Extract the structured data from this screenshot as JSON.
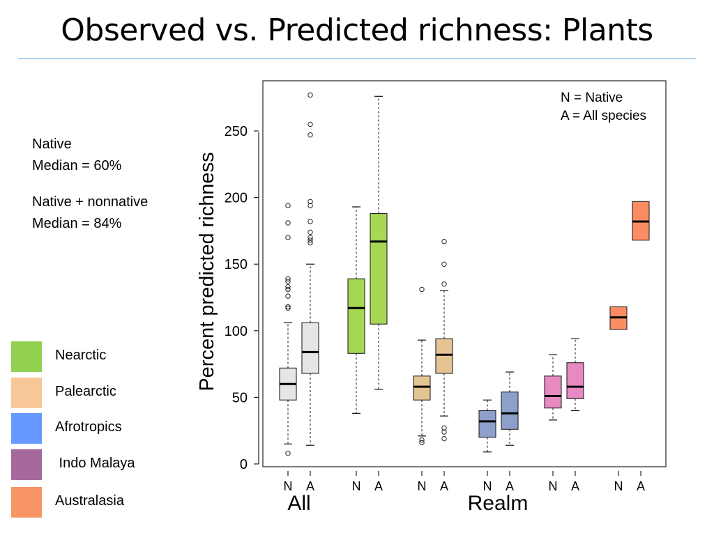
{
  "slide": {
    "title": "Observed vs. Predicted richness: Plants"
  },
  "notes": {
    "native_label": "Native",
    "native_median": "Median = 60%",
    "all_label": "Native + nonnative",
    "all_median": "Median = 84%"
  },
  "legend": [
    {
      "label": "Nearctic",
      "color": "#92d050"
    },
    {
      "label": "Palearctic",
      "color": "#f8c797"
    },
    {
      "label": "Afrotropics",
      "color": "#6699ff"
    },
    {
      "label": " Indo Malaya",
      "color": "#a6699d"
    },
    {
      "label": "Australasia",
      "color": "#f79564"
    }
  ],
  "chart_data": {
    "type": "boxplot",
    "ylabel": "Percent predicted richness",
    "xlabel_groups": [
      "All",
      "Realm"
    ],
    "ylim": [
      0,
      285
    ],
    "yticks": [
      0,
      50,
      100,
      150,
      200,
      250
    ],
    "legend_text": [
      "N = Native",
      "A = All species"
    ],
    "boxes": [
      {
        "group": "All",
        "label": "N",
        "color": "#e6e6e6",
        "whisker_low": 15,
        "q1": 48,
        "median": 60,
        "q3": 72,
        "whisker_high": 106,
        "outliers": [
          8,
          117,
          118,
          126,
          131,
          133,
          137,
          139,
          170,
          181,
          194
        ]
      },
      {
        "group": "All",
        "label": "A",
        "color": "#e6e6e6",
        "whisker_low": 14,
        "q1": 68,
        "median": 84,
        "q3": 106,
        "whisker_high": 150,
        "outliers": [
          166,
          168,
          170,
          174,
          182,
          194,
          197,
          247,
          255,
          277
        ]
      },
      {
        "group": "Nearctic",
        "label": "N",
        "color": "#a6d854",
        "whisker_low": 38,
        "q1": 83,
        "median": 117,
        "q3": 139,
        "whisker_high": 193,
        "outliers": []
      },
      {
        "group": "Nearctic",
        "label": "A",
        "color": "#a6d854",
        "whisker_low": 56,
        "q1": 105,
        "median": 167,
        "q3": 188,
        "whisker_high": 276,
        "outliers": []
      },
      {
        "group": "Palearctic",
        "label": "N",
        "color": "#e5c494",
        "whisker_low": 21,
        "q1": 48,
        "median": 58,
        "q3": 66,
        "whisker_high": 93,
        "outliers": [
          16,
          18,
          131
        ]
      },
      {
        "group": "Palearctic",
        "label": "A",
        "color": "#e5c494",
        "whisker_low": 36,
        "q1": 68,
        "median": 82,
        "q3": 94,
        "whisker_high": 130,
        "outliers": [
          19,
          24,
          27,
          135,
          150,
          167
        ]
      },
      {
        "group": "Afrotropics",
        "label": "N",
        "color": "#8da0cb",
        "whisker_low": 9,
        "q1": 20,
        "median": 32,
        "q3": 40,
        "whisker_high": 48,
        "outliers": []
      },
      {
        "group": "Afrotropics",
        "label": "A",
        "color": "#8da0cb",
        "whisker_low": 14,
        "q1": 26,
        "median": 38,
        "q3": 54,
        "whisker_high": 69,
        "outliers": []
      },
      {
        "group": "Indo Malaya",
        "label": "N",
        "color": "#e78ac3",
        "whisker_low": 33,
        "q1": 42,
        "median": 51,
        "q3": 66,
        "whisker_high": 82,
        "outliers": []
      },
      {
        "group": "Indo Malaya",
        "label": "A",
        "color": "#e78ac3",
        "whisker_low": 40,
        "q1": 49,
        "median": 58,
        "q3": 76,
        "whisker_high": 94,
        "outliers": []
      },
      {
        "group": "Australasia",
        "label": "N",
        "color": "#fc8d62",
        "whisker_low": 101,
        "q1": 101,
        "median": 110,
        "q3": 118,
        "whisker_high": 118,
        "outliers": []
      },
      {
        "group": "Australasia",
        "label": "A",
        "color": "#fc8d62",
        "whisker_low": 168,
        "q1": 168,
        "median": 182,
        "q3": 197,
        "whisker_high": 197,
        "outliers": []
      }
    ]
  }
}
